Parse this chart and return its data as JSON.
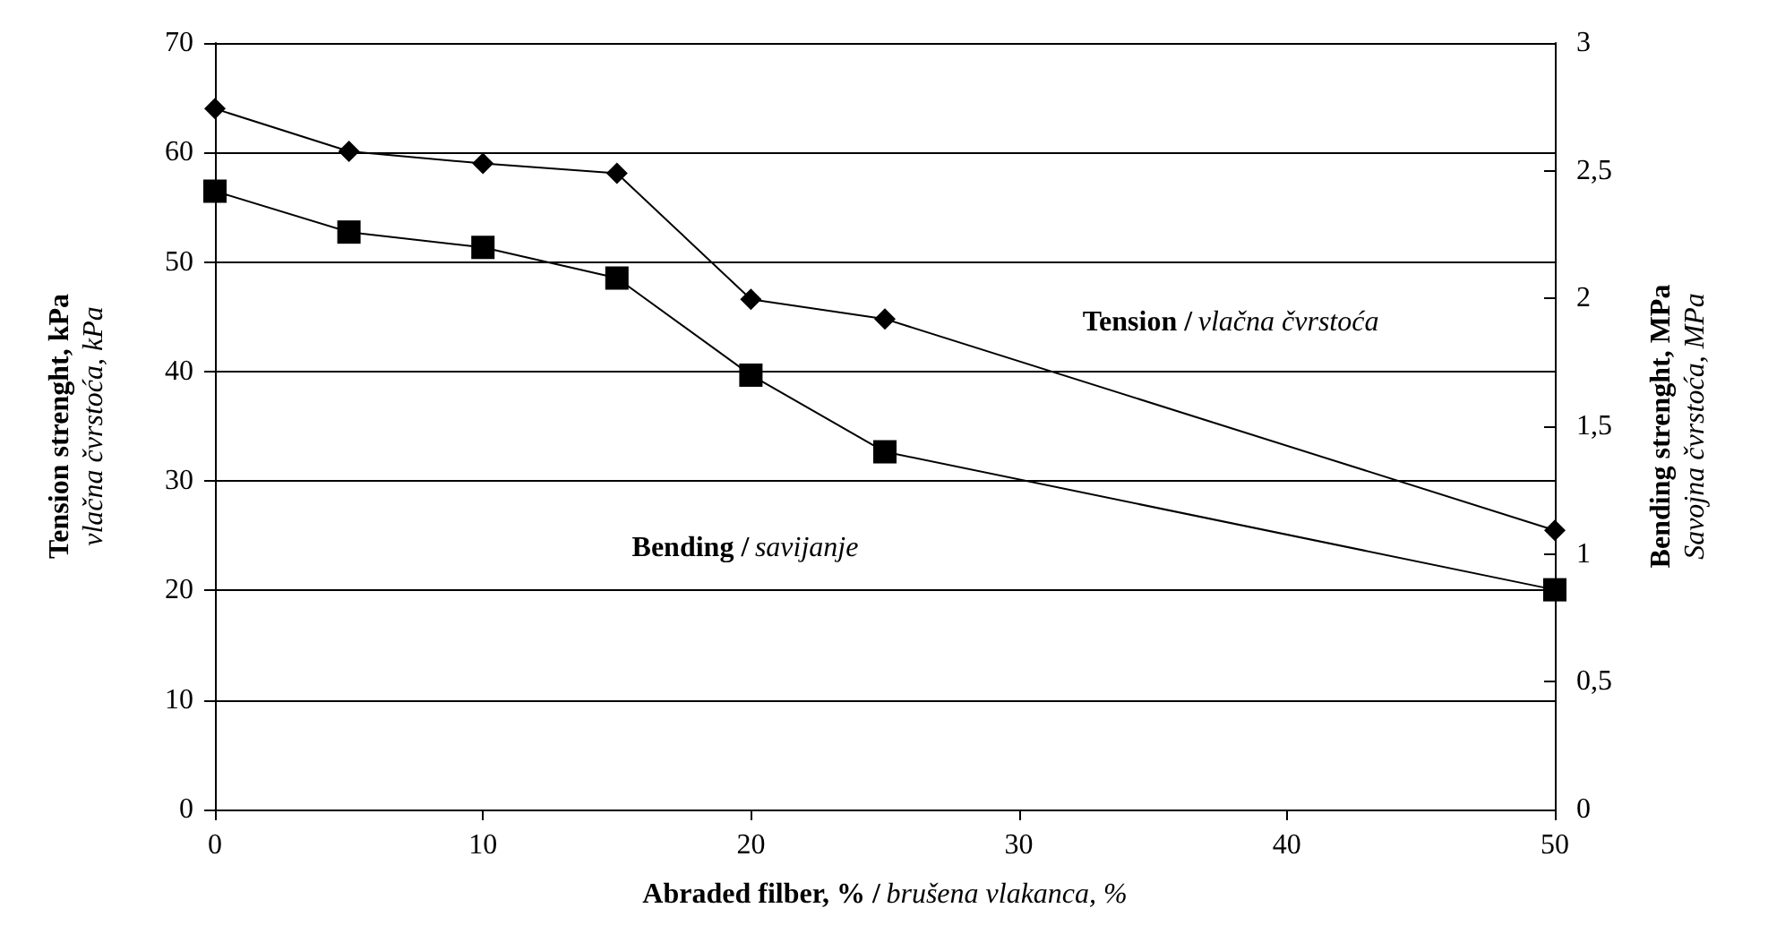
{
  "chart_data": {
    "type": "line",
    "xlabel": "Abraded filber, % / brušena vlakanca, %",
    "ylabel": "Tension strenght, kPa\nvlačna čvrstoća, kPa",
    "y2label": "Bending strenght, MPa\nSavojna čvrstoća, MPa",
    "x": [
      0,
      5,
      10,
      15,
      20,
      25,
      50
    ],
    "series": [
      {
        "color": "#000000",
        "marker": "diamond",
        "values": [
          64.0,
          60.1,
          59.0,
          58.1,
          46.6,
          44.8,
          25.5
        ]
      },
      {
        "color": "#000000",
        "marker": "square",
        "axis": "y2",
        "values": [
          2.42,
          2.26,
          2.2,
          2.08,
          1.7,
          1.4,
          0.86
        ]
      }
    ],
    "xlim": [
      0,
      50
    ],
    "xticks": [
      0,
      10,
      20,
      30,
      40,
      50
    ],
    "ylim": [
      0,
      70
    ],
    "yticks": [
      0,
      10,
      20,
      30,
      40,
      50,
      60,
      70
    ],
    "y2lim": [
      0,
      3
    ],
    "y2ticks": [
      0,
      {
        "value": 0.5,
        "label": "0,5"
      },
      1,
      {
        "value": 1.5,
        "label": "1,5"
      },
      2,
      {
        "value": 2.5,
        "label": "2,5"
      },
      3
    ],
    "grid": "y",
    "line_style": "solid",
    "annotations": [
      "Tension / vlačna čvrstoća",
      "Bending / savijanje"
    ]
  }
}
